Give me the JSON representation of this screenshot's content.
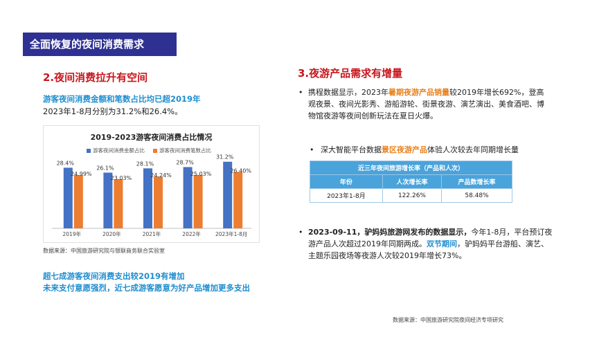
{
  "banner": {
    "title": "全面恢复的夜间消费需求"
  },
  "left": {
    "heading": "2.夜间消费拉升有空间",
    "lead_blue": "游客夜间消费金额和笔数占比均已超2019年",
    "lead_text": "2023年1-8月分别为31.2%和26.4%。",
    "source": "数据来源：中国旅游研究院与银联商务联合实验室",
    "foot_line1": "超七成游客夜间消费支出较2019有增加",
    "foot_line2": "未来支付意愿强烈，近七成游客愿意为好产品增加更多支出"
  },
  "chart_data": {
    "type": "bar",
    "title": "2019-2023游客夜间消费占比情况",
    "categories": [
      "2019年",
      "2020年",
      "2021年",
      "2022年",
      "2023年1-8月"
    ],
    "series": [
      {
        "name": "游客夜间消费金额占比",
        "values": [
          28.4,
          26.1,
          28.1,
          28.7,
          31.2
        ],
        "labels": [
          "28.4%",
          "26.1%",
          "28.1%",
          "28.7%",
          "31.2%"
        ],
        "color": "#4472c4"
      },
      {
        "name": "游客夜间消费笔数占比",
        "values": [
          24.99,
          23.03,
          24.24,
          25.03,
          26.4
        ],
        "labels": [
          "24.99%",
          "23.03%",
          "24.24%",
          "25.03%",
          "26.40%"
        ],
        "color": "#ed7d31"
      }
    ],
    "ylim": [
      0,
      35
    ],
    "grid": false,
    "legend_position": "top"
  },
  "right": {
    "heading": "3.夜游产品需求有增量",
    "b1_pre": "携程数据显示，2023年",
    "b1_hl": "暑期夜游产品销量",
    "b1_post": "较2019年增长692%，登高观夜景、夜间光影秀、游船游轮、街景夜游、演艺演出、美食酒吧、博物馆夜游等夜间创新玩法在夏日火爆。",
    "b2_pre": "深大智能平台数据",
    "b2_hl": "景区夜游产品",
    "b2_post": "体验人次较去年同期增长量",
    "table": {
      "caption": "近三年夜间旅游增长率（产品和人次）",
      "headers": [
        "年份",
        "人次增长率",
        "产品数增长率"
      ],
      "row": [
        "2023年1-8月",
        "122.26%",
        "58.48%"
      ]
    },
    "b3_bold": "2023-09-11，驴妈妈旅游网发布的数据显示，",
    "b3_mid": "今年1-8月，平台预订夜游产品人次超过2019年同期两成。",
    "b3_hl": "双节期间",
    "b3_post": "，驴妈妈平台游船、演艺、主题乐园夜场等夜游人次较2019年增长73%。",
    "source": "数据来源：中国旅游研究院夜间经济专项研究"
  },
  "colors": {
    "banner": "#2e3192",
    "heading_red": "#c8161d",
    "accent_blue": "#1f8ecf",
    "accent_orange": "#e8821e",
    "table_blue": "#4aa3db"
  }
}
